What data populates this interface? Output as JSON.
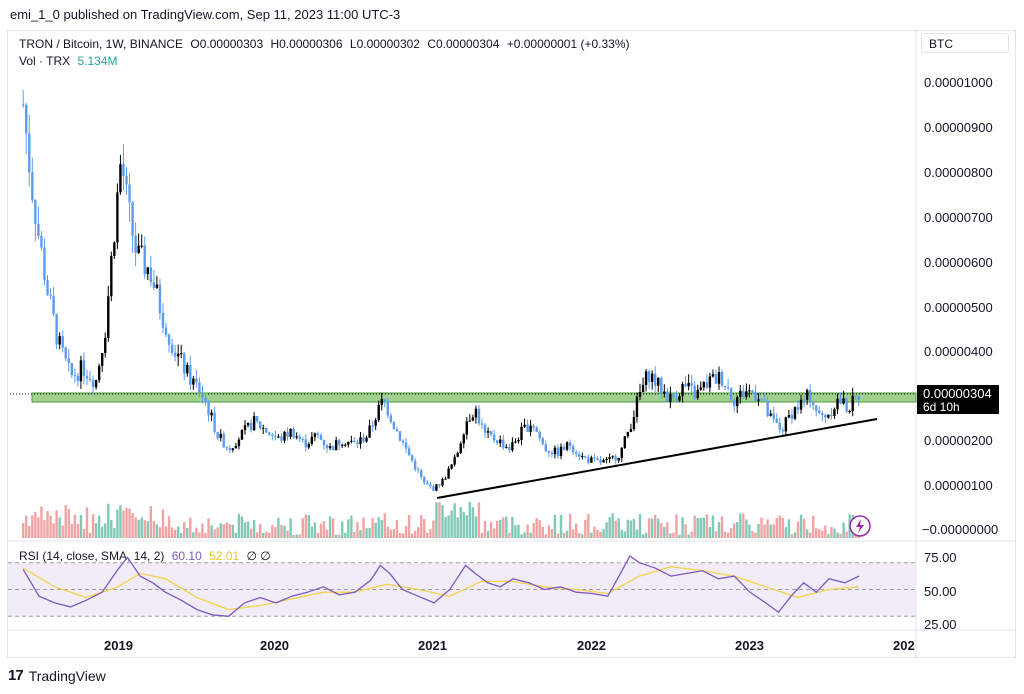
{
  "header": {
    "published_by": "emi_1_0 published on TradingView.com, Sep 11, 2023 11:00 UTC-3"
  },
  "legend": {
    "symbol": "TRON / Bitcoin, 1W, BINANCE",
    "open": "O0.00000303",
    "high": "H0.00000306",
    "low": "L0.00000302",
    "close": "C0.00000304",
    "change": "+0.00000001 (+0.33%)",
    "vol_label": "Vol · TRX",
    "vol_value": "5.134M",
    "rsi_label": "RSI (14, close, SMA, 14, 2)",
    "rsi_value": "60.10",
    "rsi_sma_value": "52.01",
    "hidden_marks": "∅ ∅"
  },
  "price_axis": {
    "currency_button": "BTC",
    "ticks": [
      "0.00001000",
      "0.00000900",
      "0.00000800",
      "0.00000700",
      "0.00000600",
      "0.00000500",
      "0.00000400",
      "0.00000200",
      "0.00000100",
      "−0.00000000"
    ],
    "last_price": "0.00000304",
    "countdown": "6d 10h"
  },
  "rsi_axis": {
    "ticks": [
      "75.00",
      "50.00",
      "25.00"
    ]
  },
  "time_axis": {
    "labels": [
      "2019",
      "2020",
      "2021",
      "2022",
      "2023",
      "202"
    ]
  },
  "footer": {
    "brand": "TradingView",
    "logo": "17"
  },
  "colors": {
    "up_candle": "#000000",
    "down_candle": "#5b9cf0",
    "support_zone": "#8fc97b",
    "rsi_line": "#7e57c2",
    "rsi_sma": "#f2d34a",
    "rsi_band": "#ede7f6",
    "vol_up": "#80c9b7",
    "vol_down": "#f0a3a3",
    "trendline": "#000000"
  },
  "chart_data": [
    {
      "type": "line",
      "title": "TRON / Bitcoin, 1W, BINANCE",
      "x_unit": "year",
      "ylim": [
        0,
        1.05e-05
      ],
      "series": [
        {
          "name": "close",
          "x": [
            2018.4,
            2018.45,
            2018.5,
            2018.56,
            2018.62,
            2018.7,
            2018.78,
            2018.86,
            2018.92,
            2018.97,
            2019.02,
            2019.06,
            2019.12,
            2019.2,
            2019.28,
            2019.36,
            2019.45,
            2019.52,
            2019.58,
            2019.63,
            2019.7,
            2019.78,
            2019.86,
            2019.94,
            2020.02,
            2020.1,
            2020.18,
            2020.26,
            2020.34,
            2020.42,
            2020.5,
            2020.58,
            2020.64,
            2020.68,
            2020.75,
            2020.82,
            2020.88,
            2020.94,
            2021.0,
            2021.06,
            2021.14,
            2021.2,
            2021.26,
            2021.32,
            2021.4,
            2021.48,
            2021.56,
            2021.62,
            2021.7,
            2021.78,
            2021.86,
            2021.94,
            2022.02,
            2022.1,
            2022.18,
            2022.24,
            2022.3,
            2022.36,
            2022.42,
            2022.5,
            2022.58,
            2022.66,
            2022.74,
            2022.82,
            2022.9,
            2022.98,
            2023.06,
            2023.12,
            2023.2,
            2023.26,
            2023.32,
            2023.38,
            2023.44,
            2023.5,
            2023.56,
            2023.62,
            2023.69
          ],
          "y": [
            9.5e-06,
            7.8e-06,
            6.5e-06,
            5.2e-06,
            4.2e-06,
            3.4e-06,
            3.6e-06,
            3.3e-06,
            4.5e-06,
            6.5e-06,
            8.3e-06,
            7.2e-06,
            6.1e-06,
            5.8e-06,
            4.8e-06,
            4e-06,
            3.4e-06,
            3.1e-06,
            2.6e-06,
            2.1e-06,
            1.8e-06,
            2.1e-06,
            2.4e-06,
            2.2e-06,
            2e-06,
            2.2e-06,
            1.9e-06,
            2.1e-06,
            1.8e-06,
            2e-06,
            1.9e-06,
            2.1e-06,
            2.6e-06,
            2.9e-06,
            2.3e-06,
            1.8e-06,
            1.4e-06,
            1e-06,
            9e-07,
            1.1e-06,
            1.6e-06,
            2.4e-06,
            2.7e-06,
            2.1e-06,
            2e-06,
            1.8e-06,
            2.2e-06,
            2.4e-06,
            1.8e-06,
            1.7e-06,
            1.9e-06,
            1.6e-06,
            1.5e-06,
            1.5e-06,
            1.7e-06,
            2.3e-06,
            3e-06,
            3.5e-06,
            3.2e-06,
            2.9e-06,
            3.2e-06,
            3e-06,
            3.3e-06,
            3.4e-06,
            2.9e-06,
            3.1e-06,
            3e-06,
            2.5e-06,
            2.2e-06,
            2.6e-06,
            2.8e-06,
            3e-06,
            2.5e-06,
            2.6e-06,
            2.9e-06,
            2.7e-06,
            3e-06
          ]
        }
      ]
    },
    {
      "type": "line",
      "title": "RSI (14, close, SMA, 14, 2)",
      "ylim": [
        20,
        80
      ],
      "series": [
        {
          "name": "RSI",
          "x": [
            2018.4,
            2018.5,
            2018.6,
            2018.7,
            2018.8,
            2018.9,
            2019.0,
            2019.06,
            2019.14,
            2019.22,
            2019.3,
            2019.4,
            2019.5,
            2019.6,
            2019.7,
            2019.8,
            2019.9,
            2020.0,
            2020.1,
            2020.2,
            2020.3,
            2020.4,
            2020.5,
            2020.6,
            2020.66,
            2020.72,
            2020.8,
            2020.9,
            2021.0,
            2021.1,
            2021.2,
            2021.26,
            2021.34,
            2021.42,
            2021.5,
            2021.6,
            2021.7,
            2021.8,
            2021.9,
            2022.0,
            2022.1,
            2022.18,
            2022.24,
            2022.3,
            2022.4,
            2022.5,
            2022.6,
            2022.7,
            2022.8,
            2022.9,
            2023.0,
            2023.1,
            2023.18,
            2023.26,
            2023.34,
            2023.42,
            2023.5,
            2023.6,
            2023.69
          ],
          "y": [
            65,
            45,
            40,
            37,
            42,
            48,
            65,
            74,
            60,
            55,
            48,
            42,
            35,
            31,
            30,
            40,
            44,
            40,
            45,
            48,
            52,
            46,
            48,
            57,
            68,
            62,
            50,
            45,
            40,
            50,
            68,
            62,
            55,
            52,
            58,
            55,
            50,
            52,
            48,
            47,
            45,
            62,
            75,
            70,
            66,
            60,
            62,
            64,
            58,
            60,
            48,
            40,
            33,
            45,
            55,
            48,
            58,
            55,
            60
          ]
        },
        {
          "name": "RSI-based MA",
          "x": [
            2018.4,
            2018.6,
            2018.8,
            2019.0,
            2019.14,
            2019.3,
            2019.5,
            2019.7,
            2019.9,
            2020.1,
            2020.3,
            2020.5,
            2020.7,
            2020.9,
            2021.1,
            2021.3,
            2021.5,
            2021.7,
            2021.9,
            2022.1,
            2022.3,
            2022.5,
            2022.7,
            2022.9,
            2023.1,
            2023.3,
            2023.5,
            2023.69
          ],
          "y": [
            66,
            52,
            44,
            52,
            62,
            58,
            44,
            35,
            38,
            43,
            48,
            48,
            54,
            50,
            45,
            56,
            56,
            52,
            50,
            47,
            60,
            67,
            64,
            60,
            52,
            44,
            50,
            52
          ]
        }
      ]
    }
  ]
}
